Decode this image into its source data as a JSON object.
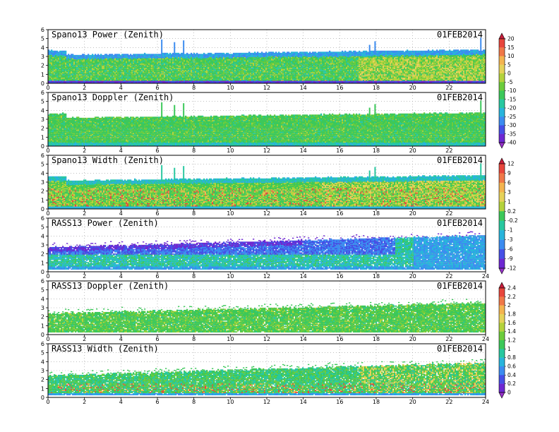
{
  "chart_data": [
    {
      "type": "heatmap",
      "title": "Spano13 Power (Zenith)",
      "date_label": "01FEB2014",
      "x_ticks": [
        0,
        2,
        4,
        6,
        8,
        10,
        12,
        14,
        16,
        18,
        20,
        22
      ],
      "y_ticks": [
        0,
        1,
        2,
        3,
        4,
        5,
        6
      ],
      "xlim": [
        0,
        24
      ],
      "ylim": [
        0,
        6
      ],
      "grid": true,
      "colorbar": "A"
    },
    {
      "type": "heatmap",
      "title": "Spano13 Doppler (Zenith)",
      "date_label": "01FEB2014",
      "x_ticks": [
        0,
        2,
        4,
        6,
        8,
        10,
        12,
        14,
        16,
        18,
        20,
        22
      ],
      "y_ticks": [
        0,
        1,
        2,
        3,
        4,
        5,
        6
      ],
      "xlim": [
        0,
        24
      ],
      "ylim": [
        0,
        6
      ],
      "grid": true,
      "colorbar": "A"
    },
    {
      "type": "heatmap",
      "title": "Spano13 Width (Zenith)",
      "date_label": "01FEB2014",
      "x_ticks": [
        0,
        2,
        4,
        6,
        8,
        10,
        12,
        14,
        16,
        18,
        20,
        22
      ],
      "y_ticks": [
        0,
        1,
        2,
        3,
        4,
        5,
        6
      ],
      "xlim": [
        0,
        24
      ],
      "ylim": [
        0,
        6
      ],
      "grid": true,
      "colorbar": "B"
    },
    {
      "type": "heatmap",
      "title": "RASS13 Power (Zenith)",
      "date_label": "01FEB2014",
      "x_ticks": [
        0,
        2,
        4,
        6,
        8,
        10,
        12,
        14,
        16,
        18,
        20,
        22,
        24
      ],
      "y_ticks": [
        0,
        1,
        2,
        3,
        4,
        5,
        6
      ],
      "xlim": [
        0,
        24
      ],
      "ylim": [
        0,
        6
      ],
      "grid": true,
      "colorbar": "B"
    },
    {
      "type": "heatmap",
      "title": "RASS13 Doppler (Zenith)",
      "date_label": "01FEB2014",
      "x_ticks": [
        0,
        2,
        4,
        6,
        8,
        10,
        12,
        14,
        16,
        18,
        20,
        22,
        24
      ],
      "y_ticks": [
        0,
        1,
        2,
        3,
        4,
        5,
        6
      ],
      "xlim": [
        0,
        24
      ],
      "ylim": [
        0,
        6
      ],
      "grid": true,
      "colorbar": "C"
    },
    {
      "type": "heatmap",
      "title": "RASS13 Width (Zenith)",
      "date_label": "01FEB2014",
      "x_ticks": [
        0,
        2,
        4,
        6,
        8,
        10,
        12,
        14,
        16,
        18,
        20,
        22,
        24
      ],
      "y_ticks": [
        0,
        1,
        2,
        3,
        4,
        5,
        6
      ],
      "xlim": [
        0,
        24
      ],
      "ylim": [
        0,
        6
      ],
      "grid": true,
      "colorbar": "C"
    }
  ],
  "colorbars": [
    {
      "id": "A",
      "labels": [
        "20",
        "15",
        "10",
        "5",
        "0",
        "-5",
        "-10",
        "-15",
        "-20",
        "-25",
        "-30",
        "-35",
        "-40"
      ],
      "colors": [
        "#c81e3c",
        "#e8463c",
        "#f07848",
        "#f4b450",
        "#e6d25a",
        "#b4d23c",
        "#6ccc3c",
        "#3cc85a",
        "#28c8a0",
        "#28b4dc",
        "#3c8cf0",
        "#4650e6",
        "#6e28d2",
        "#9632c8"
      ]
    },
    {
      "id": "B",
      "labels": [
        "12",
        "9",
        "6",
        "3",
        "1",
        "0.2",
        "-0.2",
        "-1",
        "-3",
        "-6",
        "-9",
        "-12"
      ],
      "colors": [
        "#c81e3c",
        "#e8463c",
        "#f07848",
        "#f4b450",
        "#e6d25a",
        "#b4d23c",
        "#3cc85a",
        "#28c8a0",
        "#28b4dc",
        "#3c8cf0",
        "#4650e6",
        "#6e28d2",
        "#9632c8"
      ]
    },
    {
      "id": "C",
      "labels": [
        "2.4",
        "2.2",
        "2",
        "1.8",
        "1.6",
        "1.4",
        "1.2",
        "1",
        "0.8",
        "0.6",
        "0.4",
        "0.2",
        "0"
      ],
      "colors": [
        "#c81e3c",
        "#e8463c",
        "#f07848",
        "#f4b450",
        "#e6d25a",
        "#b4d23c",
        "#6ccc3c",
        "#3cc85a",
        "#28c8a0",
        "#28b4dc",
        "#3c8cf0",
        "#4650e6",
        "#6e28d2",
        "#9632c8"
      ]
    }
  ]
}
